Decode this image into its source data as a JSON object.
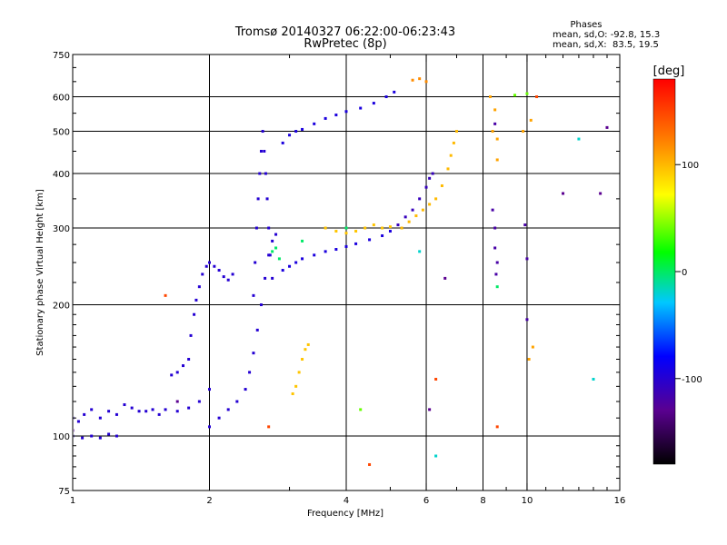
{
  "chart_data": {
    "type": "scatter",
    "title": "Tromsø 20140327 06:22:00-06:23:43",
    "subtitle": "RwPretec (8p)",
    "xlabel": "Frequency [MHz]",
    "ylabel": "Stationary phase Virtual Height [km]",
    "x_scale": "log",
    "y_scale": "log",
    "xlim": [
      1,
      16
    ],
    "ylim": [
      75,
      750
    ],
    "x_ticks": [
      1,
      2,
      4,
      6,
      8,
      10,
      16
    ],
    "x_tick_labels": [
      "1",
      "2",
      "4",
      "6",
      "8",
      "10",
      "16"
    ],
    "x_gridlines": [
      2,
      4,
      6,
      8,
      10
    ],
    "y_ticks": [
      75,
      100,
      200,
      300,
      400,
      500,
      600,
      750
    ],
    "y_tick_labels": [
      "75",
      "100",
      "200",
      "300",
      "400",
      "500",
      "600",
      "750"
    ],
    "y_gridlines": [
      100,
      200,
      300,
      400,
      500,
      600
    ],
    "grid": true,
    "stats": {
      "heading": "Phases",
      "line_o": "mean, sd,O: -92.8, 15.3",
      "line_x": "mean, sd,X:  83.5, 19.5"
    },
    "colorbar": {
      "label": "[deg]",
      "range": [
        -180,
        180
      ],
      "ticks": [
        100,
        0,
        -100
      ],
      "tick_labels": [
        "100",
        "0",
        "-100"
      ],
      "colors": [
        "#000000",
        "#5a0090",
        "#0000ff",
        "#00c8ff",
        "#00ff00",
        "#ffff00",
        "#ff8000",
        "#ff0000"
      ]
    },
    "series": [
      {
        "phase": -100,
        "points": [
          [
            1.0,
            110
          ],
          [
            1.03,
            108
          ],
          [
            1.06,
            112
          ],
          [
            1.1,
            115
          ],
          [
            1.15,
            110
          ],
          [
            1.2,
            114
          ],
          [
            1.25,
            112
          ],
          [
            1.3,
            118
          ],
          [
            1.35,
            116
          ],
          [
            1.4,
            114
          ],
          [
            1.5,
            115
          ],
          [
            1.6,
            115
          ],
          [
            1.7,
            114
          ],
          [
            1.8,
            116
          ],
          [
            1.9,
            120
          ],
          [
            2.0,
            128
          ],
          [
            1.55,
            112
          ],
          [
            1.45,
            114
          ]
        ]
      },
      {
        "phase": -100,
        "points": [
          [
            1.0,
            100
          ],
          [
            1.05,
            99
          ],
          [
            1.1,
            100
          ],
          [
            1.15,
            99
          ],
          [
            1.2,
            101
          ],
          [
            1.25,
            100
          ]
        ]
      },
      {
        "phase": -100,
        "points": [
          [
            2.0,
            105
          ],
          [
            2.1,
            110
          ],
          [
            2.2,
            115
          ],
          [
            2.3,
            120
          ],
          [
            2.4,
            128
          ],
          [
            2.45,
            140
          ],
          [
            2.5,
            155
          ],
          [
            2.55,
            175
          ],
          [
            2.6,
            200
          ],
          [
            2.65,
            230
          ],
          [
            2.7,
            260
          ],
          [
            2.75,
            280
          ],
          [
            2.8,
            290
          ]
        ]
      },
      {
        "phase": -100,
        "points": [
          [
            2.5,
            210
          ],
          [
            2.52,
            250
          ],
          [
            2.54,
            300
          ],
          [
            2.56,
            350
          ],
          [
            2.58,
            400
          ],
          [
            2.6,
            450
          ],
          [
            2.62,
            500
          ],
          [
            2.64,
            450
          ],
          [
            2.66,
            400
          ],
          [
            2.68,
            350
          ],
          [
            2.7,
            300
          ],
          [
            2.72,
            260
          ],
          [
            2.75,
            230
          ]
        ]
      },
      {
        "phase": -100,
        "points": [
          [
            1.8,
            150
          ],
          [
            1.82,
            170
          ],
          [
            1.85,
            190
          ],
          [
            1.87,
            205
          ],
          [
            1.9,
            220
          ],
          [
            1.93,
            235
          ],
          [
            1.97,
            245
          ],
          [
            2.0,
            250
          ],
          [
            2.05,
            245
          ],
          [
            2.1,
            240
          ],
          [
            2.15,
            232
          ],
          [
            2.2,
            228
          ],
          [
            2.25,
            235
          ],
          [
            1.75,
            145
          ],
          [
            1.7,
            140
          ],
          [
            1.65,
            138
          ]
        ]
      },
      {
        "phase": -95,
        "points": [
          [
            2.9,
            240
          ],
          [
            3.0,
            245
          ],
          [
            3.1,
            250
          ],
          [
            3.2,
            255
          ],
          [
            3.4,
            260
          ],
          [
            3.6,
            265
          ],
          [
            3.8,
            268
          ],
          [
            4.0,
            272
          ],
          [
            4.2,
            276
          ],
          [
            4.5,
            282
          ],
          [
            4.8,
            288
          ],
          [
            5.0,
            295
          ]
        ]
      },
      {
        "phase": -95,
        "points": [
          [
            2.9,
            470
          ],
          [
            3.0,
            490
          ],
          [
            3.1,
            500
          ],
          [
            3.2,
            505
          ],
          [
            3.4,
            520
          ],
          [
            3.6,
            535
          ],
          [
            3.8,
            545
          ],
          [
            4.0,
            555
          ],
          [
            4.3,
            565
          ],
          [
            4.6,
            580
          ],
          [
            4.9,
            600
          ],
          [
            5.1,
            615
          ]
        ]
      },
      {
        "phase": -110,
        "points": [
          [
            5.2,
            305
          ],
          [
            5.4,
            318
          ],
          [
            5.6,
            330
          ],
          [
            5.8,
            350
          ],
          [
            6.0,
            372
          ],
          [
            6.1,
            390
          ],
          [
            6.2,
            400
          ]
        ]
      },
      {
        "phase": 100,
        "points": [
          [
            5.3,
            300
          ],
          [
            5.5,
            310
          ],
          [
            5.7,
            320
          ],
          [
            5.9,
            330
          ],
          [
            6.1,
            340
          ],
          [
            6.3,
            350
          ],
          [
            6.5,
            375
          ],
          [
            6.7,
            410
          ],
          [
            6.8,
            440
          ],
          [
            6.9,
            470
          ],
          [
            7.0,
            500
          ]
        ]
      },
      {
        "phase": 95,
        "points": [
          [
            3.6,
            300
          ],
          [
            3.8,
            295
          ],
          [
            4.0,
            292
          ],
          [
            4.2,
            295
          ],
          [
            4.4,
            300
          ],
          [
            4.6,
            305
          ],
          [
            4.8,
            300
          ],
          [
            5.0,
            302
          ]
        ]
      },
      {
        "phase": 95,
        "points": [
          [
            3.05,
            125
          ],
          [
            3.1,
            130
          ],
          [
            3.15,
            140
          ],
          [
            3.2,
            150
          ],
          [
            3.25,
            158
          ],
          [
            3.3,
            162
          ]
        ]
      },
      {
        "phase": 120,
        "points": [
          [
            5.6,
            655
          ],
          [
            5.8,
            660
          ],
          [
            6.0,
            650
          ]
        ]
      },
      {
        "phase": 0,
        "points": [
          [
            4.0,
            300
          ],
          [
            2.8,
            270
          ],
          [
            2.85,
            255
          ],
          [
            2.75,
            265
          ],
          [
            3.2,
            280
          ],
          [
            8.6,
            220
          ]
        ]
      },
      {
        "phase": -120,
        "points": [
          [
            8.4,
            330
          ],
          [
            8.5,
            300
          ],
          [
            8.5,
            270
          ],
          [
            8.6,
            250
          ],
          [
            8.55,
            235
          ],
          [
            8.5,
            520
          ],
          [
            9.9,
            305
          ],
          [
            10.0,
            185
          ],
          [
            10.0,
            255
          ]
        ]
      },
      {
        "phase": 110,
        "points": [
          [
            8.3,
            600
          ],
          [
            8.5,
            560
          ],
          [
            8.4,
            500
          ],
          [
            8.6,
            480
          ],
          [
            8.6,
            430
          ],
          [
            9.8,
            500
          ],
          [
            10.2,
            530
          ],
          [
            10.3,
            160
          ],
          [
            10.1,
            150
          ]
        ]
      },
      {
        "phase": 150,
        "points": [
          [
            1.6,
            210
          ],
          [
            2.7,
            105
          ],
          [
            4.5,
            86
          ],
          [
            6.3,
            135
          ],
          [
            8.6,
            105
          ],
          [
            10.5,
            600
          ]
        ]
      },
      {
        "phase": 40,
        "points": [
          [
            9.4,
            605
          ],
          [
            10.0,
            610
          ],
          [
            4.3,
            115
          ]
        ]
      },
      {
        "phase": -130,
        "points": [
          [
            1.0,
            103
          ],
          [
            1.7,
            120
          ],
          [
            6.1,
            115
          ],
          [
            6.6,
            230
          ],
          [
            12.0,
            360
          ],
          [
            14.5,
            360
          ],
          [
            15.0,
            510
          ]
        ]
      },
      {
        "phase": -20,
        "points": [
          [
            6.3,
            90
          ],
          [
            5.8,
            265
          ],
          [
            13.0,
            480
          ],
          [
            14.0,
            135
          ]
        ]
      }
    ]
  }
}
